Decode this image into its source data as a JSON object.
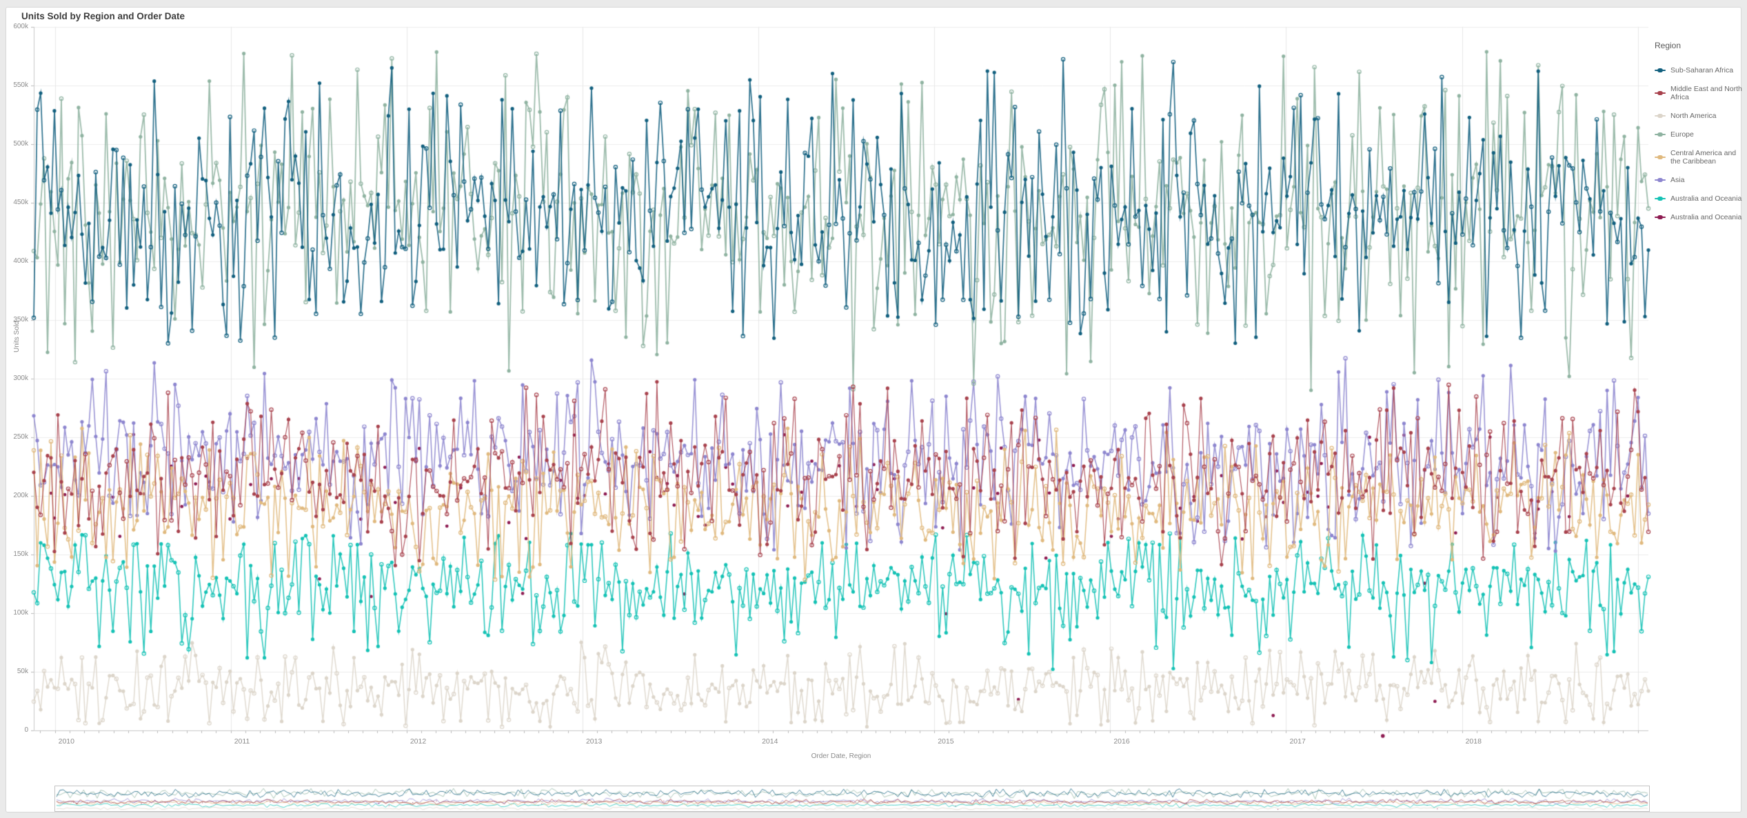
{
  "card": {
    "title": "Units Sold by Region and Order Date"
  },
  "axes": {
    "y_title": "Units Sold",
    "x_title": "Order Date, Region",
    "y_tick_labels": [
      "0",
      "50k",
      "100k",
      "150k",
      "200k",
      "250k",
      "300k",
      "350k",
      "400k",
      "450k",
      "500k",
      "550k",
      "600k"
    ],
    "x_tick_year_labels": [
      "2010",
      "2011",
      "2012",
      "2013",
      "2014",
      "2015",
      "2016",
      "2017",
      "2018"
    ]
  },
  "legend": {
    "title": "Region"
  },
  "colors": {
    "page_bg": "#eaeaea",
    "card_bg": "#ffffff",
    "card_border": "#d8d8d8",
    "grid": "#ececec",
    "year_grid": "#e7e7e7",
    "axis_line": "#c9c9c9",
    "tick": "#bbbbbb",
    "label_text": "#8a8a8a",
    "title_text": "#3c3c3c"
  },
  "chart_data": {
    "type": "line",
    "title": "Units Sold by Region and Order Date",
    "xlabel": "Order Date, Region",
    "ylabel": "Units Sold",
    "legend_title": "Region",
    "legend_position": "right",
    "grid": true,
    "x_domain": [
      2009.88,
      2019.06
    ],
    "x_tick_years": [
      2010,
      2011,
      2012,
      2013,
      2014,
      2015,
      2016,
      2017,
      2018,
      2019
    ],
    "x_labeled_years": [
      2010,
      2011,
      2012,
      2013,
      2014,
      2015,
      2016,
      2017,
      2018
    ],
    "ylim": [
      0,
      600000
    ],
    "y_tick_step": 50000,
    "points_per_series": 470,
    "description": "Dense weekly time series per region 2010-2019; values oscillate randomly inside a band per region.",
    "series": [
      {
        "name": "Sub-Saharan Africa",
        "color": "#115f7e",
        "typical": [
          368000,
          520000
        ],
        "range": [
          330000,
          575000
        ],
        "line_width": 1.7,
        "seed": 1077
      },
      {
        "name": "Middle East and North Africa",
        "color": "#a8424d",
        "typical": [
          170000,
          262000
        ],
        "range": [
          140000,
          298000
        ],
        "line_width": 1.2,
        "seed": 2154
      },
      {
        "name": "North America",
        "color": "#dcd5ca",
        "typical": [
          10000,
          62000
        ],
        "range": [
          3000,
          76000
        ],
        "line_width": 1.5,
        "seed": 3231
      },
      {
        "name": "Europe",
        "color": "#8fb3a1",
        "typical": [
          358000,
          524000
        ],
        "range": [
          288000,
          580000
        ],
        "line_width": 1.8,
        "seed": 4308
      },
      {
        "name": "Central America and the Caribbean",
        "color": "#e0b97e",
        "typical": [
          148000,
          233000
        ],
        "range": [
          128000,
          258000
        ],
        "line_width": 1.6,
        "seed": 5385
      },
      {
        "name": "Asia",
        "color": "#8d86cf",
        "typical": [
          185000,
          282000
        ],
        "range": [
          152000,
          322000
        ],
        "line_width": 1.6,
        "seed": 6462
      },
      {
        "name": "Australia and Oceania",
        "color": "#15c2b5",
        "typical": [
          85000,
          158000
        ],
        "range": [
          52000,
          168000
        ],
        "line_width": 1.6,
        "seed": 7539
      },
      {
        "name": "Australia and Oceania",
        "color": "#8e1c52",
        "typical": [
          150000,
          250000
        ],
        "range": [
          0,
          260000
        ],
        "line_width": 1.0,
        "seed": 8616,
        "sparse": true,
        "outlier": {
          "x": 2017.55,
          "y": -4700
        }
      }
    ],
    "draw_order_indices": [
      7,
      6,
      5,
      4,
      3,
      2,
      1,
      0
    ]
  }
}
